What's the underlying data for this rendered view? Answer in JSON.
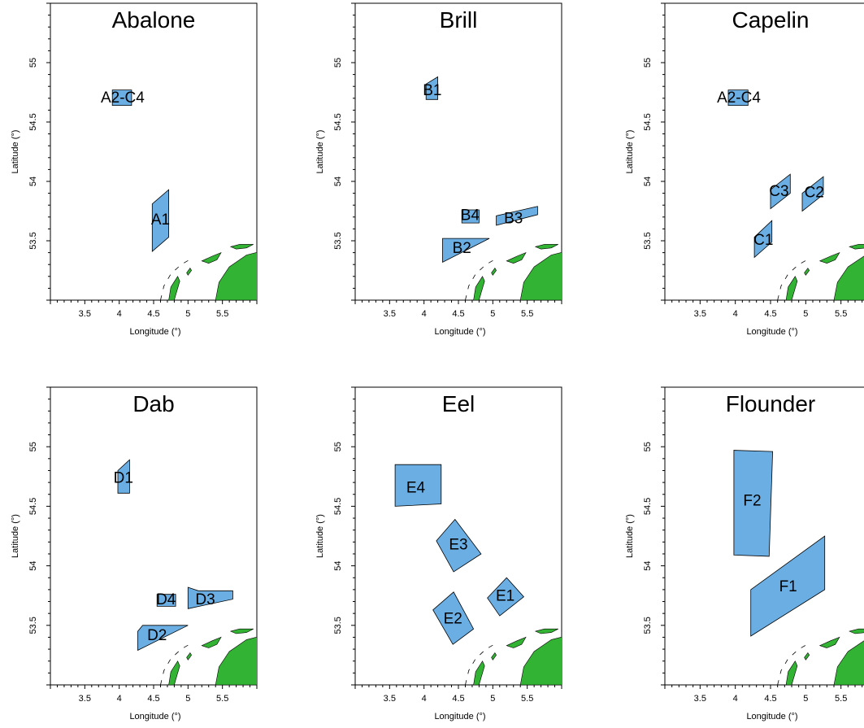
{
  "axes": {
    "xlabel": "Longitude (°)",
    "ylabel": "Latitude (°)",
    "xticks": [
      "3.5",
      "4",
      "4.5",
      "5",
      "5.5"
    ],
    "yticks": [
      "53.5",
      "54",
      "54.5",
      "55"
    ],
    "xlim": [
      3.0,
      6.0
    ],
    "ylim": [
      53.0,
      55.5
    ]
  },
  "colors": {
    "zone": "#6aaee3",
    "land": "#33b333"
  },
  "chart_data": [
    {
      "type": "map",
      "title": "Abalone",
      "zones": [
        {
          "label": "A2-C4",
          "poly": [
            [
              3.9,
              54.64
            ],
            [
              4.18,
              54.64
            ],
            [
              4.18,
              54.77
            ],
            [
              3.9,
              54.77
            ]
          ],
          "lbl": [
            4.05,
            54.7
          ]
        },
        {
          "label": "A1",
          "poly": [
            [
              4.48,
              53.41
            ],
            [
              4.72,
              53.53
            ],
            [
              4.72,
              53.93
            ],
            [
              4.48,
              53.81
            ]
          ],
          "lbl": [
            4.6,
            53.67
          ]
        }
      ]
    },
    {
      "type": "map",
      "title": "Brill",
      "zones": [
        {
          "label": "B1",
          "poly": [
            [
              4.03,
              54.69
            ],
            [
              4.2,
              54.69
            ],
            [
              4.2,
              54.88
            ],
            [
              4.03,
              54.82
            ]
          ],
          "lbl": [
            4.12,
            54.76
          ]
        },
        {
          "label": "B4",
          "poly": [
            [
              4.55,
              53.65
            ],
            [
              4.8,
              53.65
            ],
            [
              4.8,
              53.76
            ],
            [
              4.55,
              53.76
            ]
          ],
          "lbl": [
            4.67,
            53.71
          ]
        },
        {
          "label": "B3",
          "poly": [
            [
              5.05,
              53.63
            ],
            [
              5.65,
              53.72
            ],
            [
              5.65,
              53.79
            ],
            [
              5.05,
              53.71
            ]
          ],
          "lbl": [
            5.3,
            53.68
          ]
        },
        {
          "label": "B2",
          "poly": [
            [
              4.27,
              53.32
            ],
            [
              4.27,
              53.52
            ],
            [
              4.95,
              53.52
            ]
          ],
          "lbl": [
            4.55,
            53.43
          ]
        }
      ]
    },
    {
      "type": "map",
      "title": "Capelin",
      "zones": [
        {
          "label": "A2-C4",
          "poly": [
            [
              3.9,
              54.64
            ],
            [
              4.18,
              54.64
            ],
            [
              4.18,
              54.77
            ],
            [
              3.9,
              54.77
            ]
          ],
          "lbl": [
            4.05,
            54.7
          ]
        },
        {
          "label": "C3",
          "poly": [
            [
              4.5,
              53.77
            ],
            [
              4.78,
              53.9
            ],
            [
              4.78,
              54.06
            ],
            [
              4.5,
              53.93
            ]
          ],
          "lbl": [
            4.62,
            53.91
          ]
        },
        {
          "label": "C2",
          "poly": [
            [
              4.95,
              53.75
            ],
            [
              5.25,
              53.89
            ],
            [
              5.25,
              54.04
            ],
            [
              4.95,
              53.9
            ]
          ],
          "lbl": [
            5.12,
            53.9
          ]
        },
        {
          "label": "C1",
          "poly": [
            [
              4.27,
              53.36
            ],
            [
              4.52,
              53.49
            ],
            [
              4.52,
              53.67
            ],
            [
              4.27,
              53.53
            ]
          ],
          "lbl": [
            4.4,
            53.5
          ]
        }
      ]
    },
    {
      "type": "map",
      "title": "Dab",
      "zones": [
        {
          "label": "D1",
          "poly": [
            [
              3.98,
              54.61
            ],
            [
              4.15,
              54.61
            ],
            [
              4.15,
              54.89
            ],
            [
              3.98,
              54.8
            ]
          ],
          "lbl": [
            4.06,
            54.73
          ]
        },
        {
          "label": "D4",
          "poly": [
            [
              4.55,
              53.66
            ],
            [
              4.82,
              53.66
            ],
            [
              4.82,
              53.76
            ],
            [
              4.55,
              53.76
            ]
          ],
          "lbl": [
            4.68,
            53.71
          ]
        },
        {
          "label": "D3",
          "poly": [
            [
              5.0,
              53.64
            ],
            [
              5.65,
              53.72
            ],
            [
              5.65,
              53.79
            ],
            [
              5.15,
              53.79
            ],
            [
              5.0,
              53.82
            ]
          ],
          "lbl": [
            5.25,
            53.71
          ]
        },
        {
          "label": "D2",
          "poly": [
            [
              4.27,
              53.29
            ],
            [
              4.27,
              53.45
            ],
            [
              4.34,
              53.5
            ],
            [
              5.0,
              53.5
            ]
          ],
          "lbl": [
            4.55,
            53.41
          ]
        }
      ]
    },
    {
      "type": "map",
      "title": "Eel",
      "zones": [
        {
          "label": "E4",
          "poly": [
            [
              3.58,
              54.5
            ],
            [
              4.25,
              54.52
            ],
            [
              4.25,
              54.85
            ],
            [
              3.58,
              54.85
            ]
          ],
          "lbl": [
            3.88,
            54.65
          ]
        },
        {
          "label": "E3",
          "poly": [
            [
              4.18,
              54.21
            ],
            [
              4.45,
              54.39
            ],
            [
              4.83,
              54.1
            ],
            [
              4.43,
              53.95
            ]
          ],
          "lbl": [
            4.5,
            54.17
          ]
        },
        {
          "label": "E1",
          "poly": [
            [
              4.92,
              53.73
            ],
            [
              5.2,
              53.9
            ],
            [
              5.45,
              53.74
            ],
            [
              5.1,
              53.58
            ]
          ],
          "lbl": [
            5.18,
            53.74
          ]
        },
        {
          "label": "E2",
          "poly": [
            [
              4.13,
              53.63
            ],
            [
              4.43,
              53.78
            ],
            [
              4.72,
              53.47
            ],
            [
              4.42,
              53.34
            ]
          ],
          "lbl": [
            4.42,
            53.55
          ]
        }
      ]
    },
    {
      "type": "map",
      "title": "Flounder",
      "zones": [
        {
          "label": "F2",
          "poly": [
            [
              3.98,
              54.09
            ],
            [
              4.48,
              54.08
            ],
            [
              4.53,
              54.96
            ],
            [
              3.98,
              54.97
            ]
          ],
          "lbl": [
            4.24,
            54.54
          ]
        },
        {
          "label": "F1",
          "poly": [
            [
              4.22,
              53.41
            ],
            [
              5.27,
              53.8
            ],
            [
              5.27,
              54.25
            ],
            [
              4.22,
              53.8
            ]
          ],
          "lbl": [
            4.75,
            53.82
          ]
        }
      ]
    }
  ]
}
